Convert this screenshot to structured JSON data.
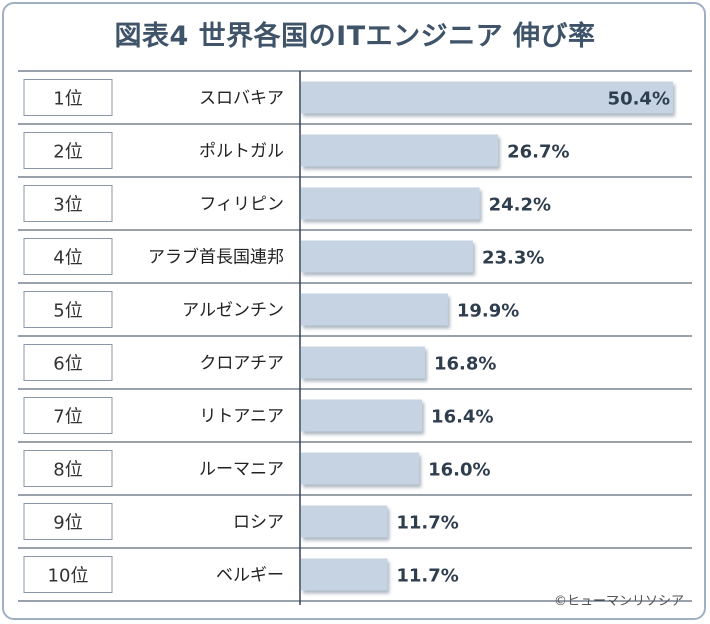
{
  "title": "図表4 世界各国のITエンジニア 伸び率",
  "footer": "©ヒューマンリソシア",
  "colors": {
    "bar": "#c5d3e3",
    "border": "#9fb0c4",
    "title": "#3f5369",
    "line": "#334455"
  },
  "chart_data": {
    "type": "bar",
    "orientation": "horizontal",
    "title": "図表4 世界各国のITエンジニア 伸び率",
    "ranks": [
      "1位",
      "2位",
      "3位",
      "4位",
      "5位",
      "6位",
      "7位",
      "8位",
      "9位",
      "10位"
    ],
    "categories": [
      "スロバキア",
      "ポルトガル",
      "フィリピン",
      "アラブ首長国連邦",
      "アルゼンチン",
      "クロアチア",
      "リトアニア",
      "ルーマニア",
      "ロシア",
      "ベルギー"
    ],
    "values": [
      50.4,
      26.7,
      24.2,
      23.3,
      19.9,
      16.8,
      16.4,
      16.0,
      11.7,
      11.7
    ],
    "labels": [
      "50.4%",
      "26.7%",
      "24.2%",
      "23.3%",
      "19.9%",
      "16.8%",
      "16.4%",
      "16.0%",
      "11.7%",
      "11.7%"
    ],
    "unit": "%",
    "xlim": [
      0,
      50.4
    ]
  }
}
